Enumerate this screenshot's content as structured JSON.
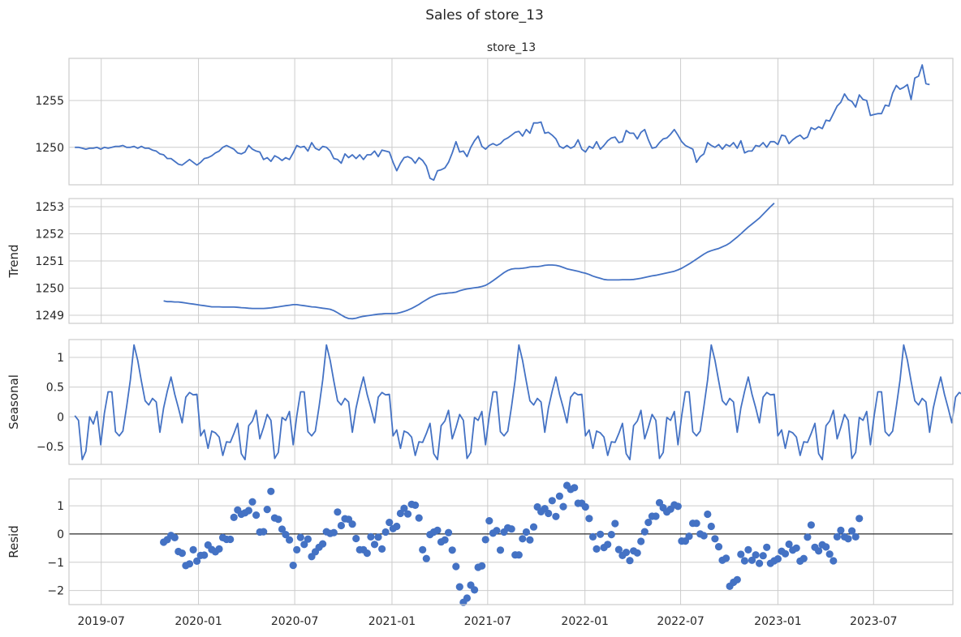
{
  "title": "Sales of store_13",
  "chart_data": [
    {
      "type": "line",
      "name": "observed",
      "title": "store_13",
      "ylabel": "",
      "ylim": [
        1246,
        1259.5
      ],
      "yticks": [
        1250,
        1255
      ],
      "x_start": "2019-05-12",
      "x_step_days": 7,
      "values": [
        1250.0,
        1250.0,
        1249.9,
        1249.8,
        1249.9,
        1249.9,
        1250.0,
        1249.8,
        1250.0,
        1249.9,
        1250.0,
        1250.1,
        1250.1,
        1250.2,
        1250.0,
        1250.0,
        1250.1,
        1249.9,
        1250.1,
        1249.9,
        1249.9,
        1249.7,
        1249.6,
        1249.3,
        1249.2,
        1248.8,
        1248.8,
        1248.5,
        1248.2,
        1248.1,
        1248.4,
        1248.7,
        1248.4,
        1248.1,
        1248.4,
        1248.8,
        1248.9,
        1249.1,
        1249.4,
        1249.6,
        1250.0,
        1250.2,
        1250.0,
        1249.8,
        1249.4,
        1249.3,
        1249.5,
        1250.2,
        1249.8,
        1249.6,
        1249.5,
        1248.7,
        1248.9,
        1248.5,
        1249.1,
        1248.9,
        1248.6,
        1248.9,
        1248.7,
        1249.4,
        1250.2,
        1250.0,
        1250.1,
        1249.6,
        1250.5,
        1249.9,
        1249.7,
        1250.1,
        1250.0,
        1249.6,
        1248.8,
        1248.7,
        1248.3,
        1249.3,
        1248.9,
        1249.2,
        1248.8,
        1249.2,
        1248.7,
        1249.2,
        1249.2,
        1249.6,
        1249.0,
        1249.7,
        1249.6,
        1249.5,
        1248.4,
        1247.5,
        1248.3,
        1248.9,
        1249.0,
        1248.8,
        1248.3,
        1248.9,
        1248.6,
        1248.0,
        1246.7,
        1246.5,
        1247.5,
        1247.6,
        1247.8,
        1248.4,
        1249.4,
        1250.6,
        1249.5,
        1249.6,
        1249.0,
        1250.0,
        1250.7,
        1251.2,
        1250.1,
        1249.8,
        1250.2,
        1250.4,
        1250.2,
        1250.4,
        1250.8,
        1251.0,
        1251.3,
        1251.6,
        1251.7,
        1251.2,
        1251.9,
        1251.5,
        1252.6,
        1252.6,
        1252.7,
        1251.5,
        1251.6,
        1251.3,
        1250.9,
        1250.1,
        1249.9,
        1250.2,
        1249.9,
        1250.1,
        1250.8,
        1249.8,
        1249.5,
        1250.1,
        1249.9,
        1250.6,
        1249.8,
        1250.2,
        1250.7,
        1251.0,
        1251.1,
        1250.5,
        1250.6,
        1251.8,
        1251.5,
        1251.5,
        1250.9,
        1251.6,
        1251.9,
        1250.8,
        1249.9,
        1250.0,
        1250.5,
        1250.9,
        1251.0,
        1251.4,
        1251.9,
        1251.3,
        1250.6,
        1250.2,
        1250.0,
        1249.8,
        1248.4,
        1249.0,
        1249.3,
        1250.5,
        1250.2,
        1250.0,
        1250.3,
        1249.8,
        1250.3,
        1250.1,
        1250.5,
        1249.9,
        1250.7,
        1249.4,
        1249.6,
        1249.6,
        1250.2,
        1250.1,
        1250.5,
        1250.0,
        1250.6,
        1250.6,
        1250.3,
        1251.3,
        1251.2,
        1250.4,
        1250.8,
        1251.1,
        1251.3,
        1250.9,
        1251.1,
        1252.1,
        1251.9,
        1252.2,
        1252.0,
        1252.9,
        1252.8,
        1253.6,
        1254.4,
        1254.8,
        1255.7,
        1255.1,
        1254.9,
        1254.3,
        1255.6,
        1255.1,
        1255.0,
        1253.4,
        1253.5,
        1253.6,
        1253.6,
        1254.5,
        1254.4,
        1255.8,
        1256.6,
        1256.2,
        1256.4,
        1256.7,
        1255.1,
        1257.4,
        1257.6,
        1258.8,
        1256.8,
        1256.7
      ]
    },
    {
      "type": "line",
      "name": "trend",
      "ylabel": "Trend",
      "ylim": [
        1248.7,
        1253.3
      ],
      "yticks": [
        1249,
        1250,
        1251,
        1252,
        1253
      ],
      "x_start": "2019-10-27",
      "x_step_days": 7,
      "values": [
        1249.53,
        1249.5,
        1249.5,
        1249.49,
        1249.49,
        1249.47,
        1249.45,
        1249.43,
        1249.41,
        1249.39,
        1249.37,
        1249.35,
        1249.33,
        1249.31,
        1249.31,
        1249.31,
        1249.3,
        1249.3,
        1249.3,
        1249.3,
        1249.29,
        1249.28,
        1249.27,
        1249.26,
        1249.25,
        1249.25,
        1249.25,
        1249.25,
        1249.26,
        1249.27,
        1249.29,
        1249.31,
        1249.33,
        1249.35,
        1249.37,
        1249.39,
        1249.39,
        1249.37,
        1249.35,
        1249.33,
        1249.31,
        1249.3,
        1249.28,
        1249.26,
        1249.24,
        1249.22,
        1249.17,
        1249.09,
        1249.01,
        1248.93,
        1248.88,
        1248.87,
        1248.89,
        1248.93,
        1248.96,
        1248.98,
        1249.0,
        1249.02,
        1249.04,
        1249.05,
        1249.06,
        1249.06,
        1249.06,
        1249.07,
        1249.1,
        1249.14,
        1249.19,
        1249.25,
        1249.32,
        1249.4,
        1249.49,
        1249.57,
        1249.65,
        1249.71,
        1249.76,
        1249.79,
        1249.8,
        1249.82,
        1249.83,
        1249.85,
        1249.9,
        1249.94,
        1249.97,
        1249.99,
        1250.01,
        1250.03,
        1250.06,
        1250.1,
        1250.18,
        1250.27,
        1250.37,
        1250.47,
        1250.57,
        1250.65,
        1250.7,
        1250.72,
        1250.72,
        1250.73,
        1250.75,
        1250.78,
        1250.79,
        1250.79,
        1250.81,
        1250.84,
        1250.85,
        1250.85,
        1250.84,
        1250.81,
        1250.76,
        1250.71,
        1250.68,
        1250.65,
        1250.62,
        1250.58,
        1250.55,
        1250.5,
        1250.44,
        1250.4,
        1250.36,
        1250.32,
        1250.3,
        1250.3,
        1250.3,
        1250.3,
        1250.31,
        1250.31,
        1250.31,
        1250.32,
        1250.34,
        1250.36,
        1250.39,
        1250.42,
        1250.45,
        1250.47,
        1250.5,
        1250.53,
        1250.56,
        1250.59,
        1250.62,
        1250.67,
        1250.73,
        1250.81,
        1250.89,
        1250.98,
        1251.07,
        1251.16,
        1251.25,
        1251.33,
        1251.38,
        1251.42,
        1251.46,
        1251.52,
        1251.58,
        1251.66,
        1251.77,
        1251.88,
        1252.0,
        1252.13,
        1252.25,
        1252.36,
        1252.47,
        1252.58,
        1252.72,
        1252.86,
        1253.0,
        1253.13
      ]
    },
    {
      "type": "line",
      "name": "seasonal",
      "ylabel": "Seasonal",
      "ylim": [
        -0.8,
        1.3
      ],
      "yticks": [
        -0.5,
        0.0,
        0.5,
        1.0
      ],
      "x_start": "2019-05-12",
      "x_step_days": 7,
      "values": [
        0.02,
        -0.06,
        -0.72,
        -0.58,
        0.0,
        -0.12,
        0.09,
        -0.47,
        0.06,
        0.42,
        0.42,
        -0.25,
        -0.32,
        -0.24,
        0.17,
        0.62,
        1.21,
        0.95,
        0.6,
        0.27,
        0.2,
        0.31,
        0.25,
        -0.26,
        0.15,
        0.43,
        0.67,
        0.38,
        0.15,
        -0.1,
        0.33,
        0.41,
        0.37,
        0.38,
        -0.32,
        -0.22,
        -0.53,
        -0.24,
        -0.27,
        -0.34,
        -0.65,
        -0.42,
        -0.43,
        -0.28,
        -0.11,
        -0.62,
        -0.72,
        -0.15,
        -0.07,
        0.11,
        -0.37,
        -0.18,
        0.04,
        -0.06,
        -0.7,
        -0.6,
        -0.01,
        -0.06,
        0.09,
        -0.47,
        0.02,
        0.42,
        0.42,
        -0.25,
        -0.32,
        -0.24,
        0.17,
        0.62,
        1.21,
        0.95,
        0.6,
        0.27,
        0.2,
        0.31,
        0.25,
        -0.26,
        0.15,
        0.43,
        0.67,
        0.38,
        0.15,
        -0.1,
        0.33,
        0.41,
        0.37,
        0.38,
        -0.32,
        -0.22,
        -0.53,
        -0.24,
        -0.27,
        -0.34,
        -0.65,
        -0.42,
        -0.43,
        -0.28,
        -0.11,
        -0.62,
        -0.72,
        -0.15,
        -0.07,
        0.11,
        -0.37,
        -0.18,
        0.04,
        -0.06,
        -0.7,
        -0.6,
        -0.01,
        -0.06,
        0.09,
        -0.47,
        0.02,
        0.42,
        0.42,
        -0.25,
        -0.32,
        -0.24,
        0.17,
        0.62,
        1.21,
        0.95,
        0.6,
        0.27,
        0.2,
        0.31,
        0.25,
        -0.26,
        0.15,
        0.43,
        0.67,
        0.38,
        0.15,
        -0.1,
        0.33,
        0.41,
        0.37,
        0.38,
        -0.32,
        -0.22,
        -0.53,
        -0.24,
        -0.27,
        -0.34,
        -0.65,
        -0.42,
        -0.43,
        -0.28,
        -0.11,
        -0.62,
        -0.72,
        -0.15,
        -0.07,
        0.11,
        -0.37,
        -0.18,
        0.04,
        -0.06,
        -0.7,
        -0.6,
        -0.01,
        -0.06,
        0.09,
        -0.47,
        0.02,
        0.42,
        0.42,
        -0.25,
        -0.32,
        -0.24,
        0.17,
        0.62,
        1.21,
        0.95,
        0.6,
        0.27,
        0.2,
        0.31,
        0.25,
        -0.26,
        0.15,
        0.43,
        0.67,
        0.38,
        0.15,
        -0.1,
        0.33,
        0.41,
        0.37,
        0.38,
        -0.32,
        -0.22,
        -0.53,
        -0.24,
        -0.27,
        -0.34,
        -0.65,
        -0.42,
        -0.43,
        -0.28,
        -0.11,
        -0.62,
        -0.72,
        -0.15,
        -0.07,
        0.11,
        -0.37,
        -0.18,
        0.04,
        -0.06,
        -0.7,
        -0.6,
        -0.01,
        -0.06,
        0.09,
        -0.47,
        0.02,
        0.42,
        0.42,
        -0.25,
        -0.32,
        -0.24,
        0.17,
        0.62,
        1.21,
        0.95,
        0.6,
        0.27,
        0.2,
        0.31,
        0.25,
        -0.26,
        0.15,
        0.43,
        0.67,
        0.38,
        0.15,
        -0.1,
        0.33,
        0.41,
        0.37
      ]
    },
    {
      "type": "scatter",
      "name": "resid",
      "ylabel": "Resid",
      "ylim": [
        -2.5,
        1.95
      ],
      "yticks": [
        -2,
        -1,
        0,
        1
      ],
      "zero_line": true,
      "x_start": "2019-10-27",
      "x_step_days": 7,
      "values": [
        -0.29,
        -0.2,
        -0.05,
        -0.13,
        -0.62,
        -0.68,
        -1.12,
        -1.06,
        -0.56,
        -0.96,
        -0.76,
        -0.75,
        -0.39,
        -0.55,
        -0.63,
        -0.53,
        -0.13,
        -0.19,
        -0.19,
        0.59,
        0.85,
        0.7,
        0.75,
        0.83,
        1.14,
        0.67,
        0.07,
        0.08,
        0.87,
        1.51,
        0.57,
        0.52,
        0.17,
        -0.02,
        -0.21,
        -1.11,
        -0.56,
        -0.12,
        -0.37,
        -0.18,
        -0.8,
        -0.63,
        -0.47,
        -0.35,
        0.08,
        0.02,
        0.05,
        0.78,
        0.3,
        0.54,
        0.52,
        0.35,
        -0.16,
        -0.56,
        -0.56,
        -0.68,
        -0.1,
        -0.37,
        -0.11,
        -0.53,
        0.07,
        0.41,
        0.19,
        0.27,
        0.73,
        0.91,
        0.71,
        1.05,
        1.02,
        0.57,
        -0.56,
        -0.87,
        -0.02,
        0.07,
        0.13,
        -0.28,
        -0.21,
        0.05,
        -0.57,
        -1.15,
        -1.87,
        -2.42,
        -2.27,
        -1.81,
        -1.98,
        -1.18,
        -1.13,
        -0.2,
        0.47,
        0.03,
        0.12,
        -0.57,
        0.07,
        0.22,
        0.18,
        -0.74,
        -0.74,
        -0.17,
        0.07,
        -0.21,
        0.25,
        0.96,
        0.79,
        0.9,
        0.73,
        1.18,
        0.62,
        1.34,
        0.97,
        1.72,
        1.58,
        1.64,
        1.09,
        1.09,
        0.96,
        0.55,
        -0.1,
        -0.53,
        -0.01,
        -0.48,
        -0.37,
        -0.02,
        0.37,
        -0.55,
        -0.76,
        -0.65,
        -0.94,
        -0.6,
        -0.67,
        -0.26,
        0.08,
        0.41,
        0.63,
        0.63,
        1.11,
        0.93,
        0.78,
        0.88,
        1.03,
        0.98,
        -0.25,
        -0.25,
        -0.08,
        0.38,
        0.38,
        0.0,
        -0.06,
        0.7,
        0.27,
        -0.17,
        -0.45,
        -0.93,
        -0.86,
        -1.85,
        -1.71,
        -1.62,
        -0.72,
        -0.95,
        -0.56,
        -0.93,
        -0.74,
        -1.04,
        -0.77,
        -0.47,
        -1.04,
        -0.95,
        -0.88,
        -0.61,
        -0.7,
        -0.36,
        -0.57,
        -0.5,
        -0.96,
        -0.87,
        -0.11,
        0.32,
        -0.47,
        -0.6,
        -0.38,
        -0.46,
        -0.71,
        -0.95,
        -0.1,
        0.13,
        -0.1,
        -0.17,
        0.11,
        -0.1,
        0.55
      ]
    }
  ],
  "xaxis": {
    "start": "2019-05-01",
    "end": "2023-11-28",
    "ticks": [
      {
        "date": "2019-07-01",
        "label": "2019-07"
      },
      {
        "date": "2020-01-01",
        "label": "2020-01"
      },
      {
        "date": "2020-07-01",
        "label": "2020-07"
      },
      {
        "date": "2021-01-01",
        "label": "2021-01"
      },
      {
        "date": "2021-07-01",
        "label": "2021-07"
      },
      {
        "date": "2022-01-01",
        "label": "2022-01"
      },
      {
        "date": "2022-07-01",
        "label": "2022-07"
      },
      {
        "date": "2023-01-01",
        "label": "2023-01"
      },
      {
        "date": "2023-07-01",
        "label": "2023-07"
      }
    ]
  },
  "colors": {
    "series": "#4472c4",
    "grid": "#cccccc",
    "zero_line": "#000000"
  }
}
